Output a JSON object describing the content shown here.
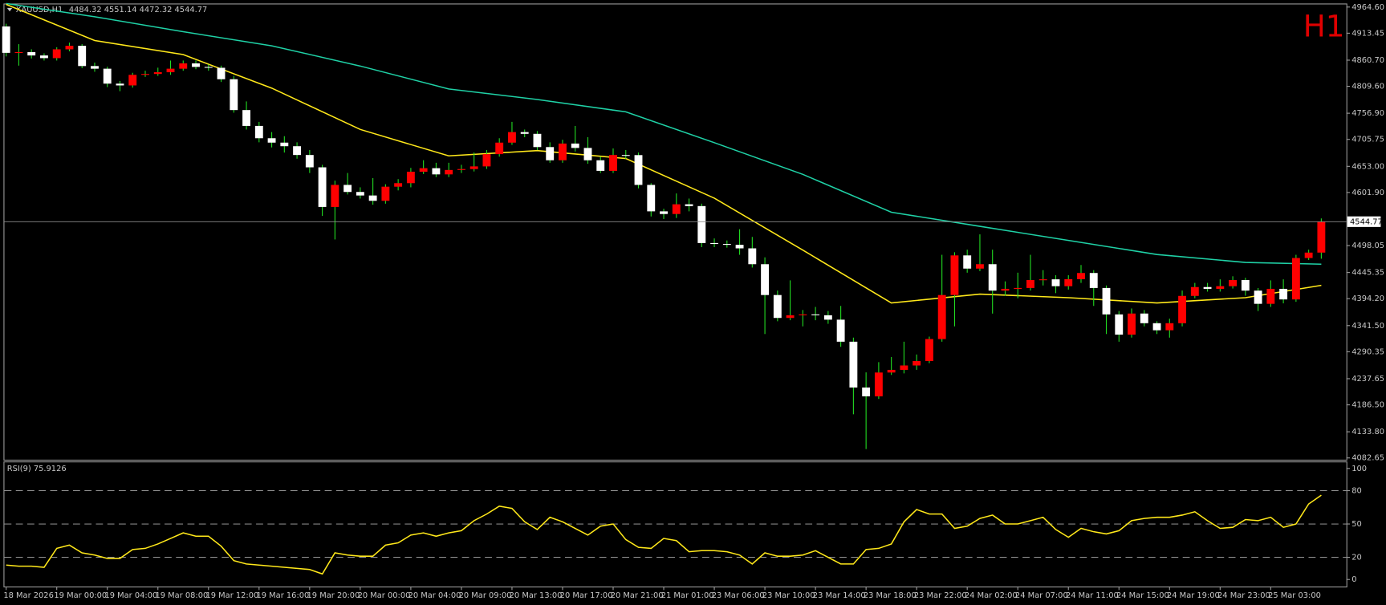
{
  "chart_data": [
    {
      "type": "candlestick",
      "symbol": "XAUUSD,H1",
      "timeframe": "H1",
      "categories": [
        "18 Mar 2026",
        null,
        null,
        null,
        "19 Mar 00:00",
        null,
        null,
        null,
        "19 Mar 04:00",
        null,
        null,
        null,
        "19 Mar 08:00",
        null,
        null,
        null,
        "19 Mar 12:00",
        null,
        null,
        null,
        "19 Mar 16:00",
        null,
        null,
        null,
        "19 Mar 20:00",
        null,
        null,
        null,
        "20 Mar 00:00",
        null,
        null,
        null,
        "20 Mar 04:00",
        null,
        null,
        null,
        "20 Mar 09:00",
        null,
        null,
        null,
        "20 Mar 13:00",
        null,
        null,
        null,
        "20 Mar 17:00",
        null,
        null,
        null,
        "20 Mar 21:00",
        null,
        null,
        null,
        "21 Mar 01:00",
        null,
        null,
        null,
        "23 Mar 06:00",
        null,
        null,
        null,
        "23 Mar 10:00",
        null,
        null,
        null,
        "23 Mar 14:00",
        null,
        null,
        null,
        "23 Mar 18:00",
        null,
        null,
        null,
        "23 Mar 22:00",
        null,
        null,
        null,
        "24 Mar 02:00",
        null,
        null,
        null,
        "24 Mar 07:00",
        null,
        null,
        null,
        "24 Mar 11:00",
        null,
        null,
        null,
        "24 Mar 15:00",
        null,
        null,
        null,
        "24 Mar 19:00",
        null,
        null,
        null,
        "24 Mar 23:00",
        null,
        null,
        null,
        "25 Mar 03:00",
        null,
        null,
        null,
        null
      ],
      "open": [
        4926.7,
        4875.0,
        4876.5,
        4869.9,
        4864.7,
        4881.9,
        4888.8,
        4849.2,
        4844.0,
        4814.8,
        4811.3,
        4832.0,
        4833.7,
        4837.1,
        4844.0,
        4854.4,
        4847.5,
        4845.8,
        4823.4,
        4763.1,
        4732.1,
        4708.0,
        4699.4,
        4692.4,
        4675.2,
        4651.1,
        4573.6,
        4616.7,
        4602.9,
        4596.0,
        4585.6,
        4613.2,
        4620.1,
        4642.5,
        4649.4,
        4637.3,
        4645.9,
        4647.7,
        4652.9,
        4676.9,
        4699.4,
        4720.0,
        4716.6,
        4690.7,
        4664.9,
        4697.6,
        4689.0,
        4664.9,
        4644.2,
        4675.2,
        4675.0,
        4616.7,
        4565.0,
        4559.8,
        4578.8,
        4575.3,
        4503.0,
        4501.2,
        4499.5,
        4492.6,
        4461.6,
        4401.3,
        4356.5,
        4361.7,
        4363.4,
        4361.7,
        4353.1,
        4310.0,
        4220.4,
        4203.2,
        4249.7,
        4254.9,
        4263.5,
        4272.1,
        4315.2,
        4401.3,
        4478.8,
        4453.0,
        4461.6,
        4409.9,
        4413.4,
        4415.1,
        4430.6,
        4432.0,
        4418.6,
        4432.3,
        4444.4,
        4415.1,
        4363.4,
        4323.8,
        4365.1,
        4346.2,
        4332.4,
        4346.2,
        4399.6,
        4416.9,
        4413.4,
        4418.6,
        4430.6,
        4409.9,
        4384.1,
        4413.4,
        4392.7,
        4473.7,
        4484.32
      ],
      "high": [
        4932,
        4892,
        4882,
        4874,
        4886,
        4895,
        4892,
        4856,
        4848,
        4820,
        4836,
        4840,
        4846,
        4860,
        4860,
        4860,
        4852,
        4850,
        4830,
        4780,
        4740,
        4720,
        4712,
        4700,
        4685,
        4656,
        4625,
        4640,
        4612,
        4630,
        4618,
        4628,
        4650,
        4665,
        4660,
        4660,
        4656,
        4680,
        4685,
        4708,
        4740,
        4725,
        4722,
        4700,
        4705,
        4732,
        4710,
        4672,
        4688,
        4685,
        4680,
        4620,
        4570,
        4600,
        4590,
        4580,
        4512,
        4508,
        4530,
        4515,
        4475,
        4410,
        4430,
        4372,
        4378,
        4370,
        4380,
        4318,
        4250,
        4270,
        4280,
        4310,
        4285,
        4320,
        4480,
        4485,
        4490,
        4520,
        4490,
        4428,
        4445,
        4480,
        4450,
        4440,
        4440,
        4460,
        4450,
        4420,
        4370,
        4375,
        4372,
        4350,
        4355,
        4410,
        4425,
        4425,
        4432,
        4438,
        4435,
        4415,
        4430,
        4432,
        4480,
        4490,
        4551.14
      ],
      "low": [
        4868,
        4850,
        4864,
        4860,
        4860,
        4878,
        4845,
        4838,
        4808,
        4800,
        4807,
        4828,
        4830,
        4832,
        4840,
        4843,
        4840,
        4818,
        4758,
        4725,
        4700,
        4690,
        4680,
        4668,
        4640,
        4556,
        4510,
        4598,
        4590,
        4578,
        4580,
        4606,
        4612,
        4638,
        4632,
        4632,
        4640,
        4643,
        4648,
        4672,
        4695,
        4710,
        4685,
        4660,
        4660,
        4682,
        4658,
        4640,
        4640,
        4668,
        4610,
        4555,
        4550,
        4552,
        4565,
        4495,
        4495,
        4494,
        4480,
        4455,
        4325,
        4350,
        4352,
        4340,
        4352,
        4345,
        4300,
        4168,
        4100,
        4198,
        4245,
        4248,
        4255,
        4268,
        4310,
        4340,
        4445,
        4448,
        4365,
        4400,
        4395,
        4410,
        4420,
        4405,
        4412,
        4425,
        4380,
        4325,
        4310,
        4318,
        4340,
        4325,
        4318,
        4340,
        4395,
        4408,
        4408,
        4414,
        4400,
        4370,
        4378,
        4385,
        4388,
        4470,
        4472.32
      ],
      "close": [
        4875.0,
        4876.5,
        4869.9,
        4864.7,
        4881.9,
        4888.8,
        4849.2,
        4844.0,
        4814.8,
        4811.3,
        4832.0,
        4833.7,
        4837.1,
        4844.0,
        4854.4,
        4847.5,
        4845.8,
        4823.4,
        4763.1,
        4732.1,
        4708.0,
        4699.4,
        4692.4,
        4675.2,
        4651.1,
        4573.6,
        4616.7,
        4602.9,
        4596.0,
        4585.6,
        4613.2,
        4620.1,
        4642.5,
        4649.4,
        4637.3,
        4645.9,
        4647.7,
        4652.9,
        4676.9,
        4699.4,
        4720.0,
        4716.6,
        4690.7,
        4664.9,
        4697.6,
        4689.0,
        4664.9,
        4644.2,
        4675.2,
        4675.0,
        4616.7,
        4565.0,
        4559.8,
        4578.8,
        4575.3,
        4503.0,
        4501.2,
        4499.5,
        4492.6,
        4461.6,
        4401.3,
        4356.5,
        4361.7,
        4363.4,
        4361.7,
        4353.1,
        4310.0,
        4220.4,
        4203.2,
        4249.7,
        4254.9,
        4263.5,
        4272.1,
        4315.2,
        4401.3,
        4478.8,
        4453.0,
        4461.6,
        4409.9,
        4413.4,
        4415.1,
        4430.6,
        4432.0,
        4418.6,
        4432.3,
        4444.4,
        4415.1,
        4363.4,
        4323.8,
        4365.1,
        4346.2,
        4332.4,
        4346.2,
        4399.6,
        4416.9,
        4413.4,
        4418.6,
        4430.6,
        4409.9,
        4384.1,
        4413.4,
        4392.7,
        4473.7,
        4484.3,
        4544.77
      ],
      "up_color": "#ff0000",
      "down_color": "#ffffff",
      "wick_color": "#22dd22",
      "lines": [
        {
          "color": "#1fd1a6",
          "x": [
            0,
            7,
            14,
            21,
            28,
            35,
            42,
            49,
            56,
            63,
            70,
            77,
            84,
            91,
            98,
            104
          ],
          "values": [
            4971.5,
            4945.7,
            4916.4,
            4888.8,
            4849.2,
            4804.4,
            4783.8,
            4759.6,
            4699.3,
            4637.3,
            4563.3,
            4535.7,
            4508.1,
            4480.6,
            4465.1,
            4461.6
          ]
        },
        {
          "color": "#ffe81a",
          "x": [
            0,
            7,
            14,
            21,
            28,
            35,
            42,
            49,
            56,
            63,
            70,
            77,
            84,
            91,
            98,
            104
          ],
          "values": [
            4969.8,
            4899.2,
            4871.6,
            4806.0,
            4725.2,
            4673.5,
            4683.8,
            4668.3,
            4590.8,
            4489.2,
            4385.8,
            4403.1,
            4396.2,
            4385.8,
            4396.2,
            4420.3
          ]
        }
      ],
      "ylim": [
        4079.2,
        4971.5
      ],
      "yticks": [
        {
          "value": 4964.6,
          "label": "4964.60"
        },
        4913.45,
        {
          "value": 4860.7,
          "label": "4860.70"
        },
        {
          "value": 4809.6,
          "label": "4809.60"
        },
        {
          "value": 4756.9,
          "label": "4756.90"
        },
        4705.75,
        {
          "value": 4653,
          "label": "4653.00"
        },
        {
          "value": 4601.9,
          "label": "4601.90"
        },
        4498.05,
        4445.35,
        {
          "value": 4394.2,
          "label": "4394.20"
        },
        {
          "value": 4341.5,
          "label": "4341.50"
        },
        4290.35,
        4237.65,
        {
          "value": 4186.5,
          "label": "4186.50"
        },
        {
          "value": 4133.8,
          "label": "4133.80"
        },
        4082.65
      ]
    },
    {
      "type": "line",
      "title": "RSI(9) 75.9126",
      "color": "#ffe81a",
      "values": [
        13,
        12,
        12,
        11,
        28,
        31,
        24,
        22,
        19,
        19,
        27,
        28,
        32,
        37,
        42,
        39,
        39,
        30,
        17,
        14,
        13,
        12,
        11,
        10,
        9,
        5,
        24,
        22,
        21,
        21,
        31,
        33,
        40,
        42,
        39,
        42,
        44,
        53,
        59,
        66,
        64,
        52,
        45,
        56,
        52,
        46,
        40,
        48,
        50,
        36,
        29,
        28,
        37,
        35,
        25,
        26,
        26,
        25,
        22,
        14,
        24,
        21,
        21,
        22,
        26,
        20,
        14,
        14,
        27,
        28,
        32,
        52,
        63,
        59,
        59,
        46,
        48,
        55,
        58,
        50,
        50,
        53,
        56,
        45,
        38,
        46,
        43,
        41,
        44,
        53,
        55,
        56,
        56,
        58,
        61,
        53,
        46,
        47,
        54,
        53,
        56,
        47,
        50,
        68,
        75.9126
      ],
      "levels": [
        80,
        50,
        20
      ],
      "ylim": [
        -6.3,
        106.3
      ],
      "yticks": [
        100,
        80,
        50,
        20,
        0
      ]
    }
  ]
}
